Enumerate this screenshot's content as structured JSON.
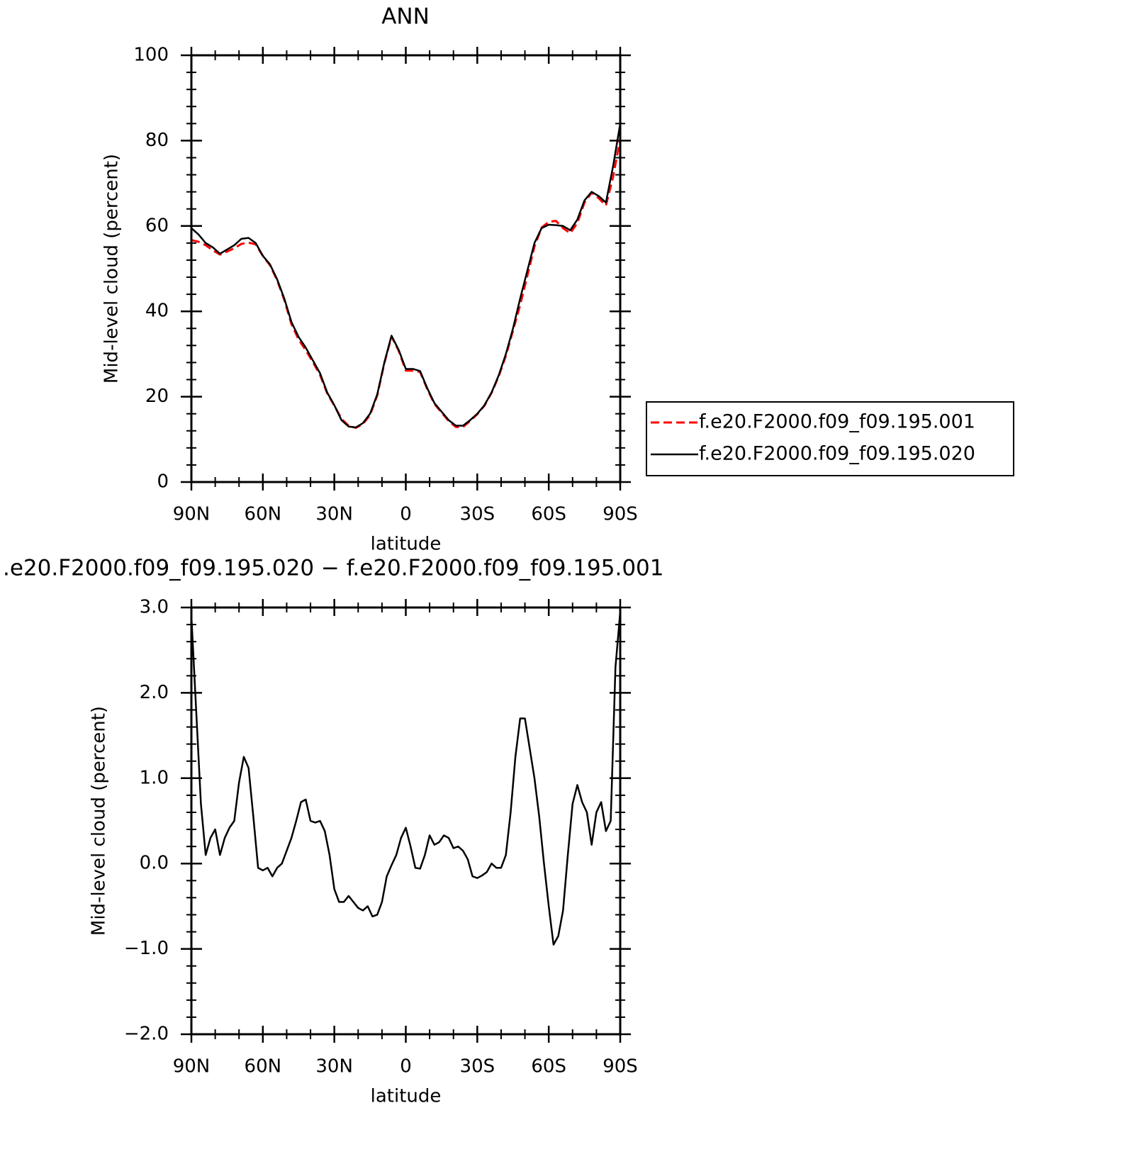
{
  "chart_data": [
    {
      "type": "line",
      "title": "ANN",
      "xlabel": "latitude",
      "ylabel": "Mid-level cloud (percent)",
      "x": [
        90,
        87,
        84,
        81,
        78,
        75,
        72,
        69,
        66,
        63,
        60,
        57,
        54,
        51,
        48,
        45,
        42,
        39,
        36,
        33,
        30,
        27,
        24,
        21,
        18,
        15,
        12,
        9,
        6,
        3,
        0,
        -3,
        -6,
        -9,
        -12,
        -15,
        -18,
        -21,
        -24,
        -27,
        -30,
        -33,
        -36,
        -39,
        -42,
        -45,
        -48,
        -51,
        -54,
        -57,
        -60,
        -63,
        -66,
        -69,
        -72,
        -75,
        -78,
        -81,
        -84,
        -87,
        -90
      ],
      "series": [
        {
          "name": "f.e20.F2000.f09_f09.195.001",
          "color": "#ff0000",
          "dashed": true,
          "values": [
            56.7,
            56.3,
            55.5,
            54.3,
            53.3,
            54,
            54.8,
            55.8,
            56.1,
            55.7,
            53,
            50.8,
            47.3,
            42.7,
            37,
            33.4,
            30.9,
            28.1,
            25.1,
            20.8,
            17.9,
            14.8,
            13.2,
            12.7,
            13.6,
            15.7,
            20.3,
            27.9,
            34.1,
            30.8,
            26.1,
            26.1,
            25.8,
            21.8,
            18.3,
            16.3,
            14.3,
            12.9,
            12.9,
            14.3,
            15.9,
            17.9,
            20.9,
            24.8,
            29.6,
            35.5,
            41.5,
            48.3,
            55.2,
            59.6,
            61,
            61.2,
            59.5,
            58.3,
            60.7,
            65.5,
            67.8,
            66.5,
            64.8,
            71.5,
            80.5
          ]
        },
        {
          "name": "f.e20.F2000.f09_f09.195.020",
          "color": "#000000",
          "dashed": false,
          "values": [
            59.5,
            58,
            56,
            55,
            53.5,
            54.5,
            55.5,
            57,
            57.2,
            56,
            53,
            51,
            47.5,
            43,
            37.5,
            34,
            31.5,
            28.5,
            25.5,
            21,
            18,
            14.5,
            13,
            12.8,
            13.8,
            16,
            20.5,
            28,
            34.3,
            31,
            26.5,
            26.5,
            26,
            22,
            18.5,
            16.5,
            14.5,
            13.2,
            13.2,
            14.5,
            16,
            18,
            21,
            25,
            30,
            36,
            43,
            49.5,
            56,
            59.5,
            60.3,
            60.2,
            60,
            59,
            61.5,
            66,
            68,
            67,
            65.5,
            74,
            84
          ]
        }
      ],
      "xlim": [
        90,
        -90
      ],
      "xticks": [
        {
          "value": 90,
          "label": "90N"
        },
        {
          "value": 60,
          "label": "60N"
        },
        {
          "value": 30,
          "label": "30N"
        },
        0,
        {
          "value": -30,
          "label": "30S"
        },
        {
          "value": -60,
          "label": "60S"
        },
        {
          "value": -90,
          "label": "90S"
        }
      ],
      "xminorticks": [
        80,
        70,
        50,
        40,
        20,
        10,
        -10,
        -20,
        -40,
        -50,
        -70,
        -80
      ],
      "ylim": [
        0,
        100
      ],
      "yticks": [
        0,
        20,
        40,
        60,
        80,
        100
      ],
      "yminorticks": [
        4,
        8,
        12,
        16,
        24,
        28,
        32,
        36,
        44,
        48,
        52,
        56,
        64,
        68,
        72,
        76,
        84,
        88,
        92,
        96
      ],
      "legend": "right"
    },
    {
      "type": "line",
      "title": ".e20.F2000.f09_f09.195.020 − f.e20.F2000.f09_f09.195.001",
      "xlabel": "latitude",
      "ylabel": "Mid-level cloud (percent)",
      "x": [
        90,
        88,
        86,
        84,
        82,
        80,
        78,
        76,
        74,
        72,
        70,
        68,
        66,
        64,
        62,
        60,
        58,
        56,
        54,
        52,
        50,
        48,
        46,
        44,
        42,
        40,
        38,
        36,
        34,
        32,
        30,
        28,
        26,
        24,
        22,
        20,
        18,
        16,
        14,
        12,
        10,
        8,
        6,
        4,
        2,
        0,
        -2,
        -4,
        -6,
        -8,
        -10,
        -12,
        -14,
        -16,
        -18,
        -20,
        -22,
        -24,
        -26,
        -28,
        -30,
        -32,
        -34,
        -36,
        -38,
        -40,
        -42,
        -44,
        -46,
        -48,
        -50,
        -52,
        -54,
        -56,
        -58,
        -60,
        -62,
        -64,
        -66,
        -68,
        -70,
        -72,
        -74,
        -76,
        -78,
        -80,
        -82,
        -84,
        -86,
        -88,
        -90
      ],
      "series": [
        {
          "color": "#000000",
          "dashed": false,
          "values": [
            2.9,
            1.8,
            0.7,
            0.1,
            0.3,
            0.4,
            0.1,
            0.3,
            0.42,
            0.5,
            0.95,
            1.25,
            1.12,
            0.55,
            -0.05,
            -0.08,
            -0.05,
            -0.15,
            -0.05,
            0.0,
            0.15,
            0.3,
            0.5,
            0.72,
            0.75,
            0.5,
            0.48,
            0.5,
            0.38,
            0.1,
            -0.3,
            -0.45,
            -0.45,
            -0.38,
            -0.45,
            -0.52,
            -0.55,
            -0.5,
            -0.62,
            -0.6,
            -0.45,
            -0.15,
            -0.02,
            0.1,
            0.3,
            0.42,
            0.2,
            -0.05,
            -0.06,
            0.1,
            0.33,
            0.22,
            0.25,
            0.33,
            0.3,
            0.18,
            0.2,
            0.15,
            0.05,
            -0.15,
            -0.17,
            -0.14,
            -0.1,
            0.0,
            -0.05,
            -0.05,
            0.1,
            0.6,
            1.25,
            1.7,
            1.7,
            1.35,
            1.0,
            0.55,
            0.0,
            -0.5,
            -0.95,
            -0.85,
            -0.55,
            0.1,
            0.7,
            0.92,
            0.72,
            0.6,
            0.22,
            0.6,
            0.72,
            0.38,
            0.5,
            2.3,
            2.95
          ]
        }
      ],
      "xlim": [
        90,
        -90
      ],
      "xticks": [
        {
          "value": 90,
          "label": "90N"
        },
        {
          "value": 60,
          "label": "60N"
        },
        {
          "value": 30,
          "label": "30N"
        },
        0,
        {
          "value": -30,
          "label": "30S"
        },
        {
          "value": -60,
          "label": "60S"
        },
        {
          "value": -90,
          "label": "90S"
        }
      ],
      "xminorticks": [
        80,
        70,
        50,
        40,
        20,
        10,
        -10,
        -20,
        -40,
        -50,
        -70,
        -80
      ],
      "ylim": [
        -2,
        3
      ],
      "yticks": [
        {
          "value": -2,
          "label": "−2.0"
        },
        {
          "value": -1,
          "label": "−1.0"
        },
        {
          "value": 0,
          "label": "0.0"
        },
        {
          "value": 1,
          "label": "1.0"
        },
        {
          "value": 2,
          "label": "2.0"
        },
        {
          "value": 3,
          "label": "3.0"
        }
      ],
      "yminorticks": [
        -1.8,
        -1.6,
        -1.4,
        -1.2,
        -0.8,
        -0.6,
        -0.4,
        -0.2,
        0.2,
        0.4,
        0.6,
        0.8,
        1.2,
        1.4,
        1.6,
        1.8,
        2.2,
        2.4,
        2.6,
        2.8
      ]
    }
  ]
}
